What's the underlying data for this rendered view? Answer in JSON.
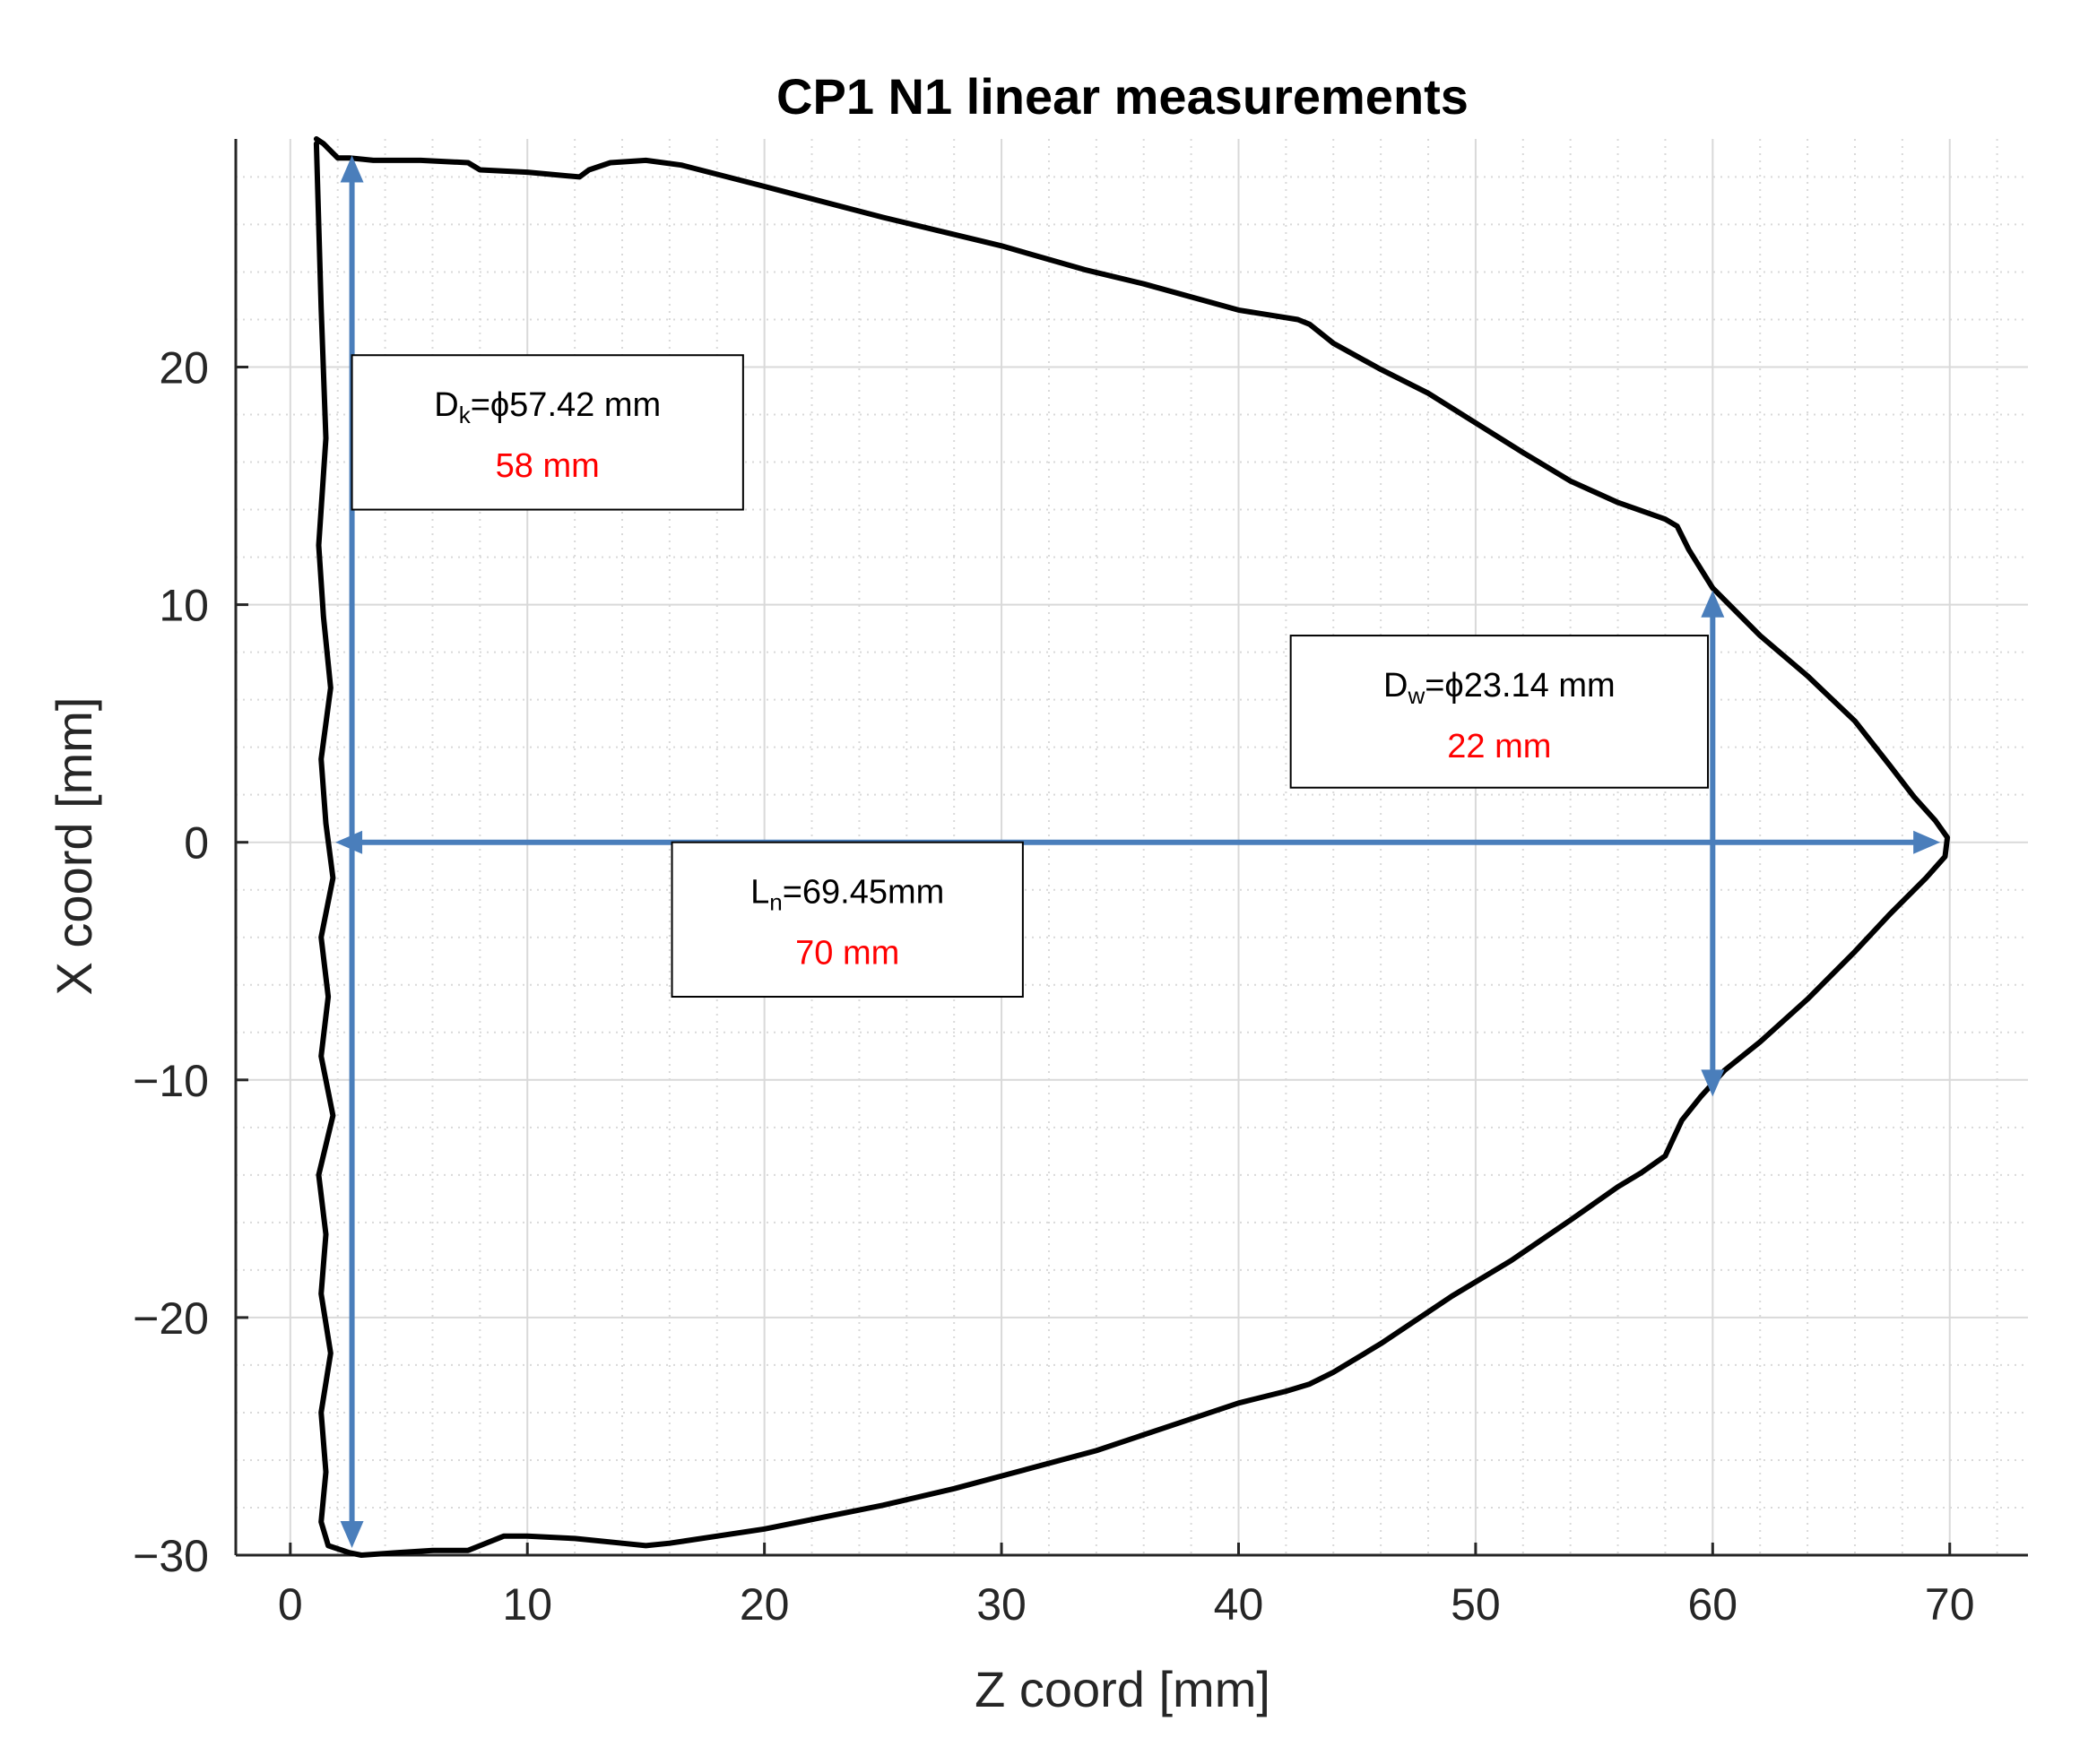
{
  "chart_data": {
    "type": "line",
    "title": "CP1 N1 linear measurements",
    "xlabel": "Z coord [mm]",
    "ylabel": "X coord [mm]",
    "xlim": [
      -2.3,
      73.3
    ],
    "ylim": [
      -30.0,
      29.6
    ],
    "xticks": [
      0,
      10,
      20,
      30,
      40,
      50,
      60,
      70
    ],
    "yticks": [
      -30,
      -20,
      -10,
      0,
      10,
      20
    ],
    "xtick_labels": [
      "0",
      "10",
      "20",
      "30",
      "40",
      "50",
      "60",
      "70"
    ],
    "ytick_labels": [
      "−30",
      "−20",
      "−10",
      "0",
      "10",
      "20"
    ],
    "grid": true,
    "minor_grid": true,
    "colors": {
      "outline": "#000000",
      "arrow": "#4a7ebb",
      "grid": "#d9d9d9",
      "value_red": "#ff0000"
    },
    "series": [
      {
        "name": "outline",
        "x": [
          1.1,
          1.4,
          2.0,
          2.5,
          3.5,
          5.5,
          7.5,
          8.0,
          10.0,
          12.2,
          12.6,
          13.5,
          15.0,
          16.5,
          20.0,
          25.0,
          30.0,
          33.5,
          36.0,
          40.0,
          42.5,
          43.0,
          44.0,
          46.0,
          48.0,
          52.0,
          54.0,
          56.0,
          58.0,
          58.5,
          59.0,
          60.0,
          62.0,
          64.0,
          66.0,
          67.5,
          68.5,
          69.4,
          69.9,
          69.8,
          69.0,
          67.5,
          66.0,
          64.0,
          62.0,
          60.5,
          59.5,
          58.7,
          58.0,
          57.0,
          56.0,
          54.0,
          51.5,
          49.0,
          46.0,
          44.0,
          43.0,
          42.0,
          40.0,
          37.0,
          34.0,
          31.0,
          28.0,
          25.0,
          20.0,
          16.0,
          15.0,
          14.0,
          12.0,
          10.0,
          9.0,
          8.0,
          7.5,
          6.0,
          4.5,
          3.0,
          2.5,
          1.6,
          1.3,
          1.5,
          1.3,
          1.7,
          1.3,
          1.5,
          1.2,
          1.8,
          1.3,
          1.6,
          1.3,
          1.8,
          1.5,
          1.3,
          1.7,
          1.4,
          1.2,
          1.5,
          1.3,
          1.1
        ],
        "y": [
          29.6,
          29.4,
          28.8,
          28.8,
          28.7,
          28.7,
          28.6,
          28.3,
          28.2,
          28.0,
          28.3,
          28.6,
          28.7,
          28.5,
          27.6,
          26.3,
          25.1,
          24.1,
          23.5,
          22.4,
          22.0,
          21.8,
          21.0,
          19.9,
          18.9,
          16.4,
          15.2,
          14.3,
          13.6,
          13.3,
          12.3,
          10.7,
          8.7,
          7.0,
          5.1,
          3.2,
          1.9,
          0.9,
          0.2,
          -0.6,
          -1.5,
          -3.0,
          -4.6,
          -6.6,
          -8.4,
          -9.6,
          -10.7,
          -11.7,
          -13.2,
          -13.9,
          -14.5,
          -15.9,
          -17.6,
          -19.1,
          -21.1,
          -22.3,
          -22.8,
          -23.1,
          -23.6,
          -24.6,
          -25.6,
          -26.4,
          -27.2,
          -27.9,
          -28.9,
          -29.5,
          -29.6,
          -29.5,
          -29.3,
          -29.2,
          -29.2,
          -29.6,
          -29.8,
          -29.8,
          -29.9,
          -30.0,
          -29.9,
          -29.6,
          -28.6,
          -26.5,
          -24.0,
          -21.5,
          -19.0,
          -16.5,
          -14.0,
          -11.5,
          -9.0,
          -6.5,
          -4.0,
          -1.5,
          0.8,
          3.5,
          6.5,
          9.5,
          12.5,
          17.0,
          22.5,
          29.4
        ]
      }
    ],
    "annotations": [
      {
        "name": "knee-diameter",
        "label_prefix": "D",
        "label_sub": "k",
        "label_rest": "=ϕ57.42 mm",
        "value": "58 mm",
        "arrow": {
          "orientation": "vertical",
          "from": [
            2.6,
            28.9
          ],
          "to": [
            2.6,
            -29.7
          ]
        },
        "box": {
          "z0": 2.6,
          "z1": 19.1,
          "x0": 20.5,
          "x1": 14.0
        }
      },
      {
        "name": "waist-diameter",
        "label_prefix": "D",
        "label_sub": "w",
        "label_rest": "=ϕ23.14 mm",
        "value": "22 mm",
        "arrow": {
          "orientation": "vertical",
          "from": [
            60.0,
            10.6
          ],
          "to": [
            60.0,
            -10.7
          ]
        },
        "box": {
          "z0": 42.2,
          "z1": 59.8,
          "x0": 8.7,
          "x1": 2.3
        }
      },
      {
        "name": "nose-length",
        "label_prefix": "L",
        "label_sub": "n",
        "label_rest": "=69.45mm",
        "value": "70 mm",
        "arrow": {
          "orientation": "horizontal",
          "from": [
            1.9,
            0.0
          ],
          "to": [
            69.6,
            0.0
          ]
        },
        "box": {
          "z0": 16.1,
          "z1": 30.9,
          "x0": 0.0,
          "x1": -6.5
        }
      }
    ]
  }
}
